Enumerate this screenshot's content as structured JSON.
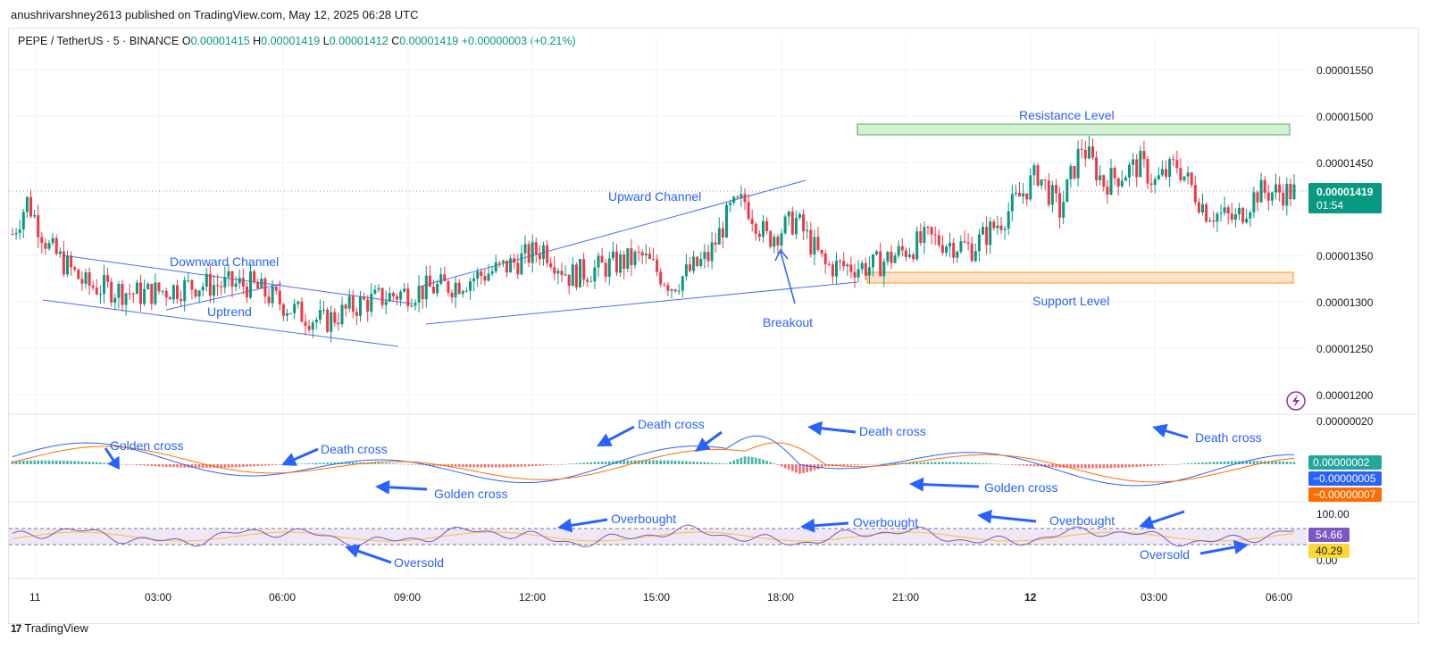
{
  "publisher": "anushrivarshney2613 published on TradingView.com, May 12, 2025 06:28 UTC",
  "symbol": {
    "name": "PEPE / TetherUS · 5 · BINANCE",
    "o_label": "O",
    "o": "0.00001415",
    "h_label": "H",
    "h": "0.00001419",
    "l_label": "L",
    "l": "0.00001412",
    "c_label": "C",
    "c": "0.00001419",
    "change": "+0.00000003 (+0.21%)"
  },
  "footer": {
    "brand": "TradingView",
    "logo": "17"
  },
  "colors": {
    "up": "#089981",
    "down": "#f23645",
    "annotation": "#2962ff",
    "macd": "#2962ff",
    "signal": "#ff6d00",
    "rsi": "#7e57c2",
    "rsi_ma": "#fbc02d"
  },
  "chart_data": [
    {
      "type": "candlestick",
      "title": "",
      "y_ticks": [
        "0.00001550",
        "0.00001500",
        "0.00001450",
        "0.00001350",
        "0.00001300",
        "0.00001250",
        "0.00001200"
      ],
      "ylim": [
        1.18e-05,
        1.59e-05
      ],
      "x_ticks": [
        "11",
        "03:00",
        "06:00",
        "09:00",
        "12:00",
        "15:00",
        "18:00",
        "21:00",
        "12",
        "03:00",
        "06:00"
      ],
      "last_price": "0.00001419",
      "countdown": "01:54",
      "close_path": [
        [
          0,
          1.375e-05
        ],
        [
          4,
          1.41e-05
        ],
        [
          10,
          1.36e-05
        ],
        [
          20,
          1.32e-05
        ],
        [
          35,
          1.31e-05
        ],
        [
          50,
          1.32e-05
        ],
        [
          65,
          1.32e-05
        ],
        [
          78,
          1.29e-05
        ],
        [
          85,
          1.28e-05
        ],
        [
          95,
          1.3e-05
        ],
        [
          105,
          1.31e-05
        ],
        [
          120,
          1.32e-05
        ],
        [
          135,
          1.34e-05
        ],
        [
          145,
          1.36e-05
        ],
        [
          152,
          1.33e-05
        ],
        [
          162,
          1.34e-05
        ],
        [
          172,
          1.35e-05
        ],
        [
          180,
          1.32e-05
        ],
        [
          190,
          1.35e-05
        ],
        [
          196,
          1.4e-05
        ],
        [
          200,
          1.41e-05
        ],
        [
          206,
          1.37e-05
        ],
        [
          214,
          1.39e-05
        ],
        [
          222,
          1.34e-05
        ],
        [
          235,
          1.34e-05
        ],
        [
          250,
          1.37e-05
        ],
        [
          262,
          1.36e-05
        ],
        [
          270,
          1.39e-05
        ],
        [
          280,
          1.44e-05
        ],
        [
          286,
          1.4e-05
        ],
        [
          292,
          1.47e-05
        ],
        [
          298,
          1.43e-05
        ],
        [
          308,
          1.45e-05
        ],
        [
          312,
          1.43e-05
        ],
        [
          318,
          1.45e-05
        ],
        [
          326,
          1.4e-05
        ],
        [
          334,
          1.39e-05
        ],
        [
          340,
          1.42e-05
        ]
      ],
      "annotations": {
        "downward_channel": "Downward Channel",
        "uptrend": "Uptrend",
        "upward_channel": "Upward Channel",
        "breakout": "Breakout",
        "resistance": "Resistance Level",
        "support": "Support Level"
      }
    },
    {
      "type": "line",
      "name": "MACD",
      "macd_value": "0.00000002",
      "macd_label_value": "−0.00000005",
      "signal_value": "−0.00000007",
      "axis_top": "0.00000020",
      "annotations": [
        {
          "text": "Golden cross"
        },
        {
          "text": "Death cross"
        },
        {
          "text": "Golden cross"
        },
        {
          "text": "Death cross"
        },
        {
          "text": "Death cross"
        },
        {
          "text": "Golden cross"
        },
        {
          "text": "Death cross"
        }
      ]
    },
    {
      "type": "line",
      "name": "RSI",
      "y_ticks": [
        "100.00",
        "0.00"
      ],
      "rsi_value": "54.66",
      "rsi_ma_value": "40.29",
      "annotations": [
        {
          "text": "Overbought"
        },
        {
          "text": "Overbought"
        },
        {
          "text": "Overbought"
        },
        {
          "text": "Oversold"
        },
        {
          "text": "Oversold"
        }
      ]
    }
  ]
}
